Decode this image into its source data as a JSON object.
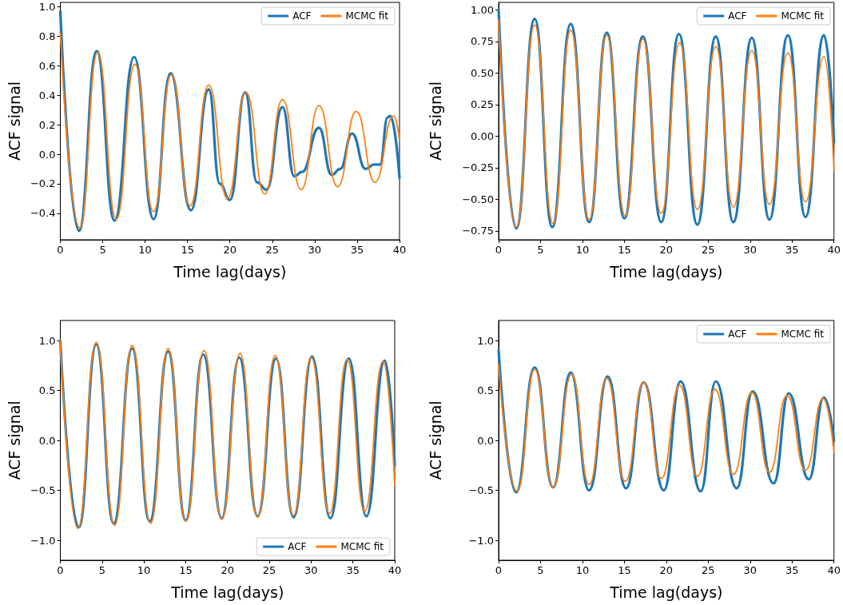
{
  "chart_data": [
    {
      "type": "line",
      "xlabel": "Time lag(days)",
      "ylabel": "ACF signal",
      "xlim": [
        0,
        40
      ],
      "xticks": [
        0,
        5,
        10,
        15,
        20,
        25,
        30,
        35,
        40
      ],
      "ylim": [
        -0.58,
        1.03
      ],
      "yticks": [
        {
          "value": -0.4,
          "label": "−0.4"
        },
        {
          "value": -0.2,
          "label": "−0.2"
        },
        {
          "value": 0,
          "label": "0.0"
        },
        {
          "value": 0.2,
          "label": "0.2"
        },
        {
          "value": 0.4,
          "label": "0.4"
        },
        {
          "value": 0.6,
          "label": "0.6"
        },
        {
          "value": 0.8,
          "label": "0.8"
        },
        {
          "value": 1.0,
          "label": "1.0"
        }
      ],
      "grid": false,
      "legend": "top right",
      "marker": "none",
      "line_style": "solid",
      "series": [
        {
          "name": "ACF",
          "color": "#1f77b4",
          "x": [
            0,
            2.2,
            4.3,
            6.4,
            8.7,
            11.0,
            13.0,
            15.4,
            17.5,
            18.8,
            20.0,
            21.8,
            23.2,
            24.3,
            26.2,
            27.6,
            28.5,
            30.5,
            32.0,
            33.0,
            34.4,
            36.0,
            37.0,
            37.7,
            38.6,
            38.9,
            40
          ],
          "values": [
            0.97,
            -0.52,
            0.7,
            -0.45,
            0.66,
            -0.44,
            0.55,
            -0.38,
            0.44,
            -0.2,
            -0.31,
            0.42,
            -0.19,
            -0.24,
            0.32,
            -0.15,
            -0.12,
            0.18,
            -0.14,
            -0.1,
            0.14,
            -0.1,
            -0.07,
            -0.07,
            0.25,
            0.26,
            -0.16
          ]
        },
        {
          "name": "MCMC fit",
          "color": "#ff7f0e",
          "x": [
            0,
            2.3,
            4.4,
            6.6,
            8.8,
            11.0,
            13.1,
            15.3,
            17.5,
            19.7,
            21.9,
            24.1,
            26.2,
            28.4,
            30.5,
            32.7,
            34.9,
            37.1,
            39.3,
            40
          ],
          "values": [
            0.82,
            -0.5,
            0.69,
            -0.44,
            0.61,
            -0.39,
            0.54,
            -0.35,
            0.47,
            -0.3,
            0.42,
            -0.27,
            0.37,
            -0.24,
            0.33,
            -0.22,
            0.29,
            -0.19,
            0.26,
            0.09
          ]
        }
      ]
    },
    {
      "type": "line",
      "xlabel": "Time lag(days)",
      "ylabel": "ACF signal",
      "xlim": [
        0,
        40
      ],
      "xticks": [
        0,
        5,
        10,
        15,
        20,
        25,
        30,
        35,
        40
      ],
      "ylim": [
        -0.82,
        1.06
      ],
      "yticks": [
        {
          "value": -0.75,
          "label": "−0.75"
        },
        {
          "value": -0.5,
          "label": "−0.50"
        },
        {
          "value": -0.25,
          "label": "−0.25"
        },
        {
          "value": 0,
          "label": "0.00"
        },
        {
          "value": 0.25,
          "label": "0.25"
        },
        {
          "value": 0.5,
          "label": "0.50"
        },
        {
          "value": 0.75,
          "label": "0.75"
        },
        {
          "value": 1.0,
          "label": "1.00"
        }
      ],
      "grid": false,
      "legend": "top right",
      "marker": "none",
      "line_style": "solid",
      "series": [
        {
          "name": "ACF",
          "color": "#1f77b4",
          "x": [
            0,
            2.1,
            4.3,
            6.4,
            8.6,
            10.8,
            12.9,
            15.0,
            17.2,
            19.4,
            21.5,
            23.7,
            25.9,
            28.0,
            30.2,
            32.3,
            34.5,
            36.6,
            38.8,
            40
          ],
          "values": [
            1.0,
            -0.73,
            0.93,
            -0.72,
            0.89,
            -0.68,
            0.82,
            -0.65,
            0.79,
            -0.68,
            0.81,
            -0.7,
            0.79,
            -0.68,
            0.78,
            -0.66,
            0.8,
            -0.64,
            0.8,
            -0.05
          ]
        },
        {
          "name": "MCMC fit",
          "color": "#ff7f0e",
          "x": [
            0,
            2.1,
            4.3,
            6.5,
            8.6,
            10.8,
            12.9,
            15.1,
            17.2,
            19.4,
            21.6,
            23.7,
            25.9,
            28.0,
            30.2,
            32.3,
            34.5,
            36.6,
            38.8,
            40
          ],
          "values": [
            0.92,
            -0.72,
            0.88,
            -0.69,
            0.84,
            -0.66,
            0.8,
            -0.63,
            0.77,
            -0.61,
            0.74,
            -0.58,
            0.71,
            -0.56,
            0.68,
            -0.54,
            0.66,
            -0.52,
            0.63,
            -0.27
          ]
        }
      ]
    },
    {
      "type": "line",
      "xlabel": "Time lag(days)",
      "ylabel": "ACF signal",
      "xlim": [
        0,
        40
      ],
      "xticks": [
        0,
        5,
        10,
        15,
        20,
        25,
        30,
        35,
        40
      ],
      "ylim": [
        -1.2,
        1.2
      ],
      "yticks": [
        {
          "value": -1.0,
          "label": "−1.0"
        },
        {
          "value": -0.5,
          "label": "−0.5"
        },
        {
          "value": 0,
          "label": "0.0"
        },
        {
          "value": 0.5,
          "label": "0.5"
        },
        {
          "value": 1.0,
          "label": "1.0"
        }
      ],
      "grid": false,
      "legend": "bottom right",
      "marker": "none",
      "line_style": "solid",
      "series": [
        {
          "name": "ACF",
          "color": "#1f77b4",
          "x": [
            0,
            2.2,
            4.3,
            6.4,
            8.6,
            10.7,
            12.9,
            15.0,
            17.1,
            19.3,
            21.4,
            23.6,
            25.8,
            27.9,
            30.1,
            32.3,
            34.5,
            36.6,
            38.8,
            40
          ],
          "values": [
            1.0,
            -0.87,
            0.96,
            -0.83,
            0.92,
            -0.81,
            0.89,
            -0.8,
            0.86,
            -0.78,
            0.83,
            -0.76,
            0.82,
            -0.77,
            0.84,
            -0.78,
            0.82,
            -0.76,
            0.8,
            -0.25
          ]
        },
        {
          "name": "MCMC fit",
          "color": "#ff7f0e",
          "x": [
            0,
            2.1,
            4.3,
            6.5,
            8.6,
            10.8,
            12.9,
            15.0,
            17.2,
            19.3,
            21.5,
            23.6,
            25.7,
            27.9,
            30.0,
            32.2,
            34.3,
            36.4,
            38.6,
            40
          ],
          "values": [
            1.0,
            -0.88,
            0.98,
            -0.85,
            0.95,
            -0.83,
            0.92,
            -0.81,
            0.9,
            -0.79,
            0.87,
            -0.77,
            0.85,
            -0.75,
            0.83,
            -0.73,
            0.81,
            -0.71,
            0.79,
            -0.45
          ]
        }
      ]
    },
    {
      "type": "line",
      "xlabel": "Time lag(days)",
      "ylabel": "ACF signal",
      "xlim": [
        0,
        40
      ],
      "xticks": [
        0,
        5,
        10,
        15,
        20,
        25,
        30,
        35,
        40
      ],
      "ylim": [
        -1.2,
        1.2
      ],
      "yticks": [
        {
          "value": -1.0,
          "label": "−1.0"
        },
        {
          "value": -0.5,
          "label": "−0.5"
        },
        {
          "value": 0,
          "label": "0.0"
        },
        {
          "value": 0.5,
          "label": "0.5"
        },
        {
          "value": 1.0,
          "label": "1.0"
        }
      ],
      "grid": false,
      "legend": "top right",
      "marker": "none",
      "line_style": "solid",
      "series": [
        {
          "name": "ACF",
          "color": "#1f77b4",
          "x": [
            0,
            2.1,
            4.3,
            6.5,
            8.6,
            10.8,
            13.0,
            15.2,
            17.3,
            19.7,
            21.7,
            24.1,
            25.9,
            28.4,
            30.3,
            32.8,
            34.6,
            37.0,
            38.8,
            40
          ],
          "values": [
            0.9,
            -0.52,
            0.73,
            -0.47,
            0.68,
            -0.5,
            0.64,
            -0.48,
            0.58,
            -0.5,
            0.59,
            -0.51,
            0.59,
            -0.48,
            0.49,
            -0.43,
            0.47,
            -0.39,
            0.43,
            0.0
          ]
        },
        {
          "name": "MCMC fit",
          "color": "#ff7f0e",
          "x": [
            0,
            2.2,
            4.3,
            6.5,
            8.7,
            10.8,
            12.9,
            15.1,
            17.3,
            19.4,
            21.6,
            23.7,
            25.8,
            28.0,
            30.2,
            32.3,
            34.4,
            36.6,
            38.7,
            40
          ],
          "values": [
            0.76,
            -0.51,
            0.71,
            -0.47,
            0.66,
            -0.44,
            0.62,
            -0.41,
            0.58,
            -0.38,
            0.55,
            -0.36,
            0.51,
            -0.34,
            0.48,
            -0.32,
            0.45,
            -0.3,
            0.42,
            -0.12
          ]
        }
      ]
    }
  ]
}
